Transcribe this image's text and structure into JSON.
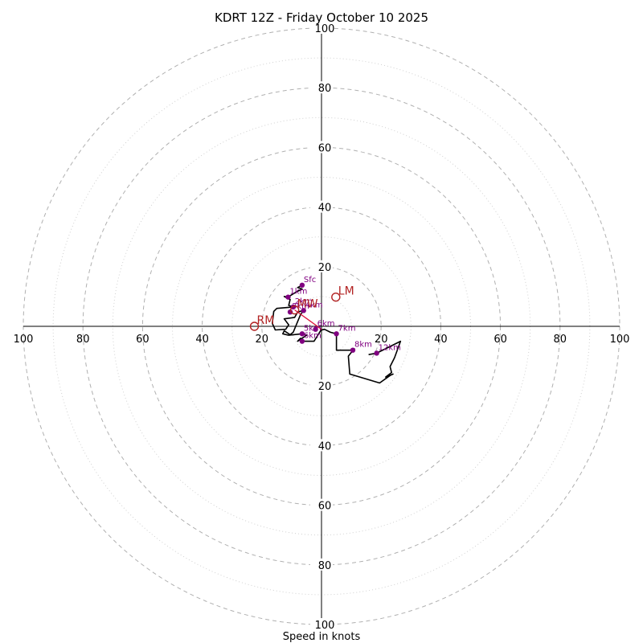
{
  "chart_data": {
    "type": "hodograph",
    "title": "KDRT 12Z - Friday October 10 2025",
    "xlabel": "Speed in knots",
    "range": 100,
    "rings_major": [
      20,
      40,
      60,
      80,
      100
    ],
    "rings_minor": [
      10,
      30,
      50,
      70,
      90
    ],
    "tick_values": [
      20,
      40,
      60,
      80,
      100
    ],
    "hodograph_path": [
      [
        -6.5,
        13.8
      ],
      [
        -8,
        13
      ],
      [
        -6.5,
        12.5
      ],
      [
        -8.5,
        11.5
      ],
      [
        -11.2,
        9.8
      ],
      [
        -12.5,
        10
      ],
      [
        -10.5,
        9
      ],
      [
        -11,
        7
      ],
      [
        -9.5,
        6.5
      ],
      [
        -15,
        6
      ],
      [
        -16,
        5
      ],
      [
        -16.5,
        1
      ],
      [
        -15.5,
        -1.2
      ],
      [
        -12,
        -1
      ],
      [
        -11,
        0.5
      ],
      [
        -12.5,
        2.5
      ],
      [
        -9,
        3
      ],
      [
        -8,
        4.8
      ],
      [
        -6,
        5.3
      ],
      [
        -7,
        4
      ],
      [
        -9.5,
        -2
      ],
      [
        -10.5,
        -2.8
      ],
      [
        -12.5,
        -1.5
      ],
      [
        -13,
        -2.5
      ],
      [
        -11,
        -3
      ],
      [
        -6.5,
        -2.5
      ],
      [
        -5,
        -3
      ],
      [
        -8,
        -5
      ],
      [
        -7,
        -4
      ],
      [
        -6.5,
        -5
      ],
      [
        -2.5,
        -5
      ],
      [
        -0.2,
        -1.3
      ],
      [
        1,
        -1
      ],
      [
        3,
        -2
      ],
      [
        5,
        -2.5
      ],
      [
        5,
        -8
      ],
      [
        10.5,
        -8
      ],
      [
        11,
        -7.5
      ],
      [
        9,
        -10
      ],
      [
        9.5,
        -16
      ],
      [
        19.5,
        -19
      ],
      [
        23,
        -16.5
      ],
      [
        24,
        -16
      ],
      [
        21.5,
        -17
      ],
      [
        23.5,
        -15.5
      ],
      [
        23,
        -13.5
      ],
      [
        24.5,
        -10.5
      ],
      [
        26.5,
        -5
      ],
      [
        18.5,
        -9
      ],
      [
        15.8,
        -9.5
      ]
    ],
    "height_markers": [
      {
        "label": "Sfc",
        "u": -6.5,
        "v": 13.8
      },
      {
        "label": "1km",
        "u": -11.2,
        "v": 9.8
      },
      {
        "label": "2km",
        "u": -9.5,
        "v": 6.5
      },
      {
        "label": "3km",
        "u": -10.5,
        "v": 4.8
      },
      {
        "label": "4km",
        "u": -6,
        "v": 5.3
      },
      {
        "label": "5km",
        "u": -6.5,
        "v": -2.5
      },
      {
        "label": "6km",
        "u": -6.5,
        "v": -5
      },
      {
        "label": "6km",
        "u": -2,
        "v": -1
      },
      {
        "label": "7km",
        "u": 5,
        "v": -2.5
      },
      {
        "label": "8km",
        "u": 10.5,
        "v": -8
      },
      {
        "label": "12km",
        "u": 18.5,
        "v": -9
      }
    ],
    "storm_motion": [
      {
        "label": "LM",
        "u": 4.8,
        "v": 9.8
      },
      {
        "label": "RM",
        "u": -22.5,
        "v": 0
      },
      {
        "label": "MW",
        "u": -9,
        "v": 5.5
      }
    ],
    "mean_wind_arrow": {
      "from": [
        0,
        -1
      ],
      "to": [
        -9,
        5.5
      ]
    }
  }
}
